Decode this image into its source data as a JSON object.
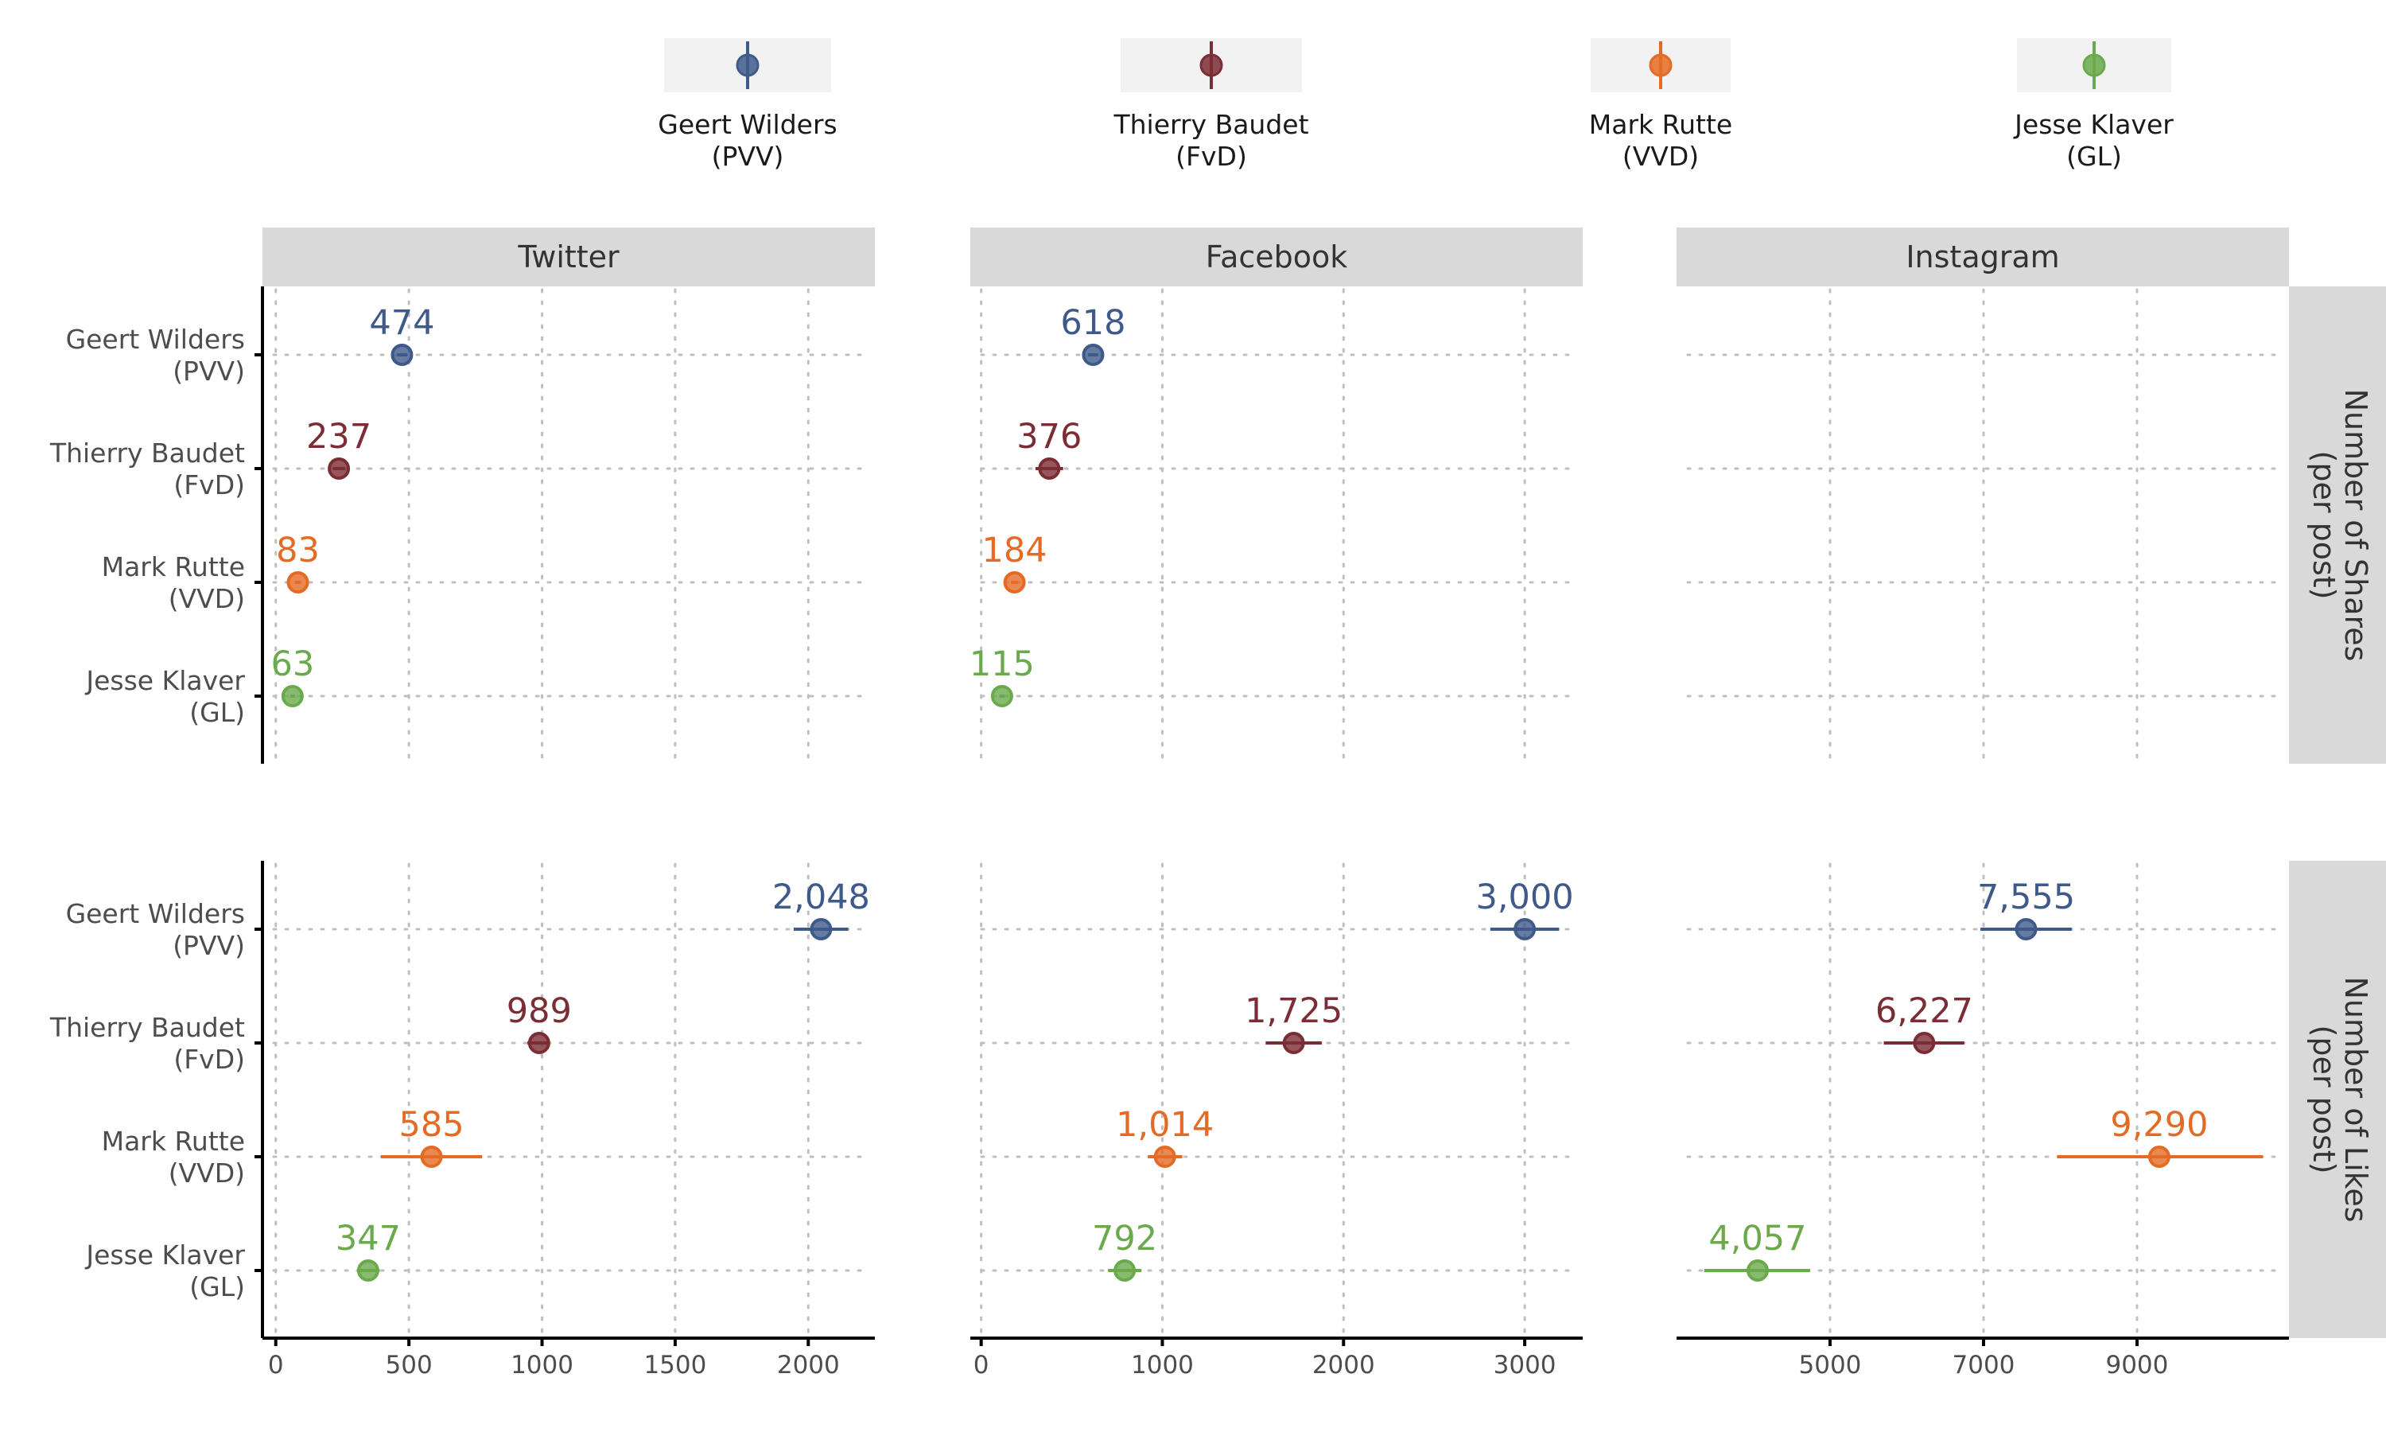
{
  "legend": [
    {
      "line1": "Geert Wilders",
      "line2": "(PVV)",
      "color": "#3f5a8a"
    },
    {
      "line1": "Thierry Baudet",
      "line2": "(FvD)",
      "color": "#7b2d35"
    },
    {
      "line1": "Mark Rutte",
      "line2": "(VVD)",
      "color": "#e46b25"
    },
    {
      "line1": "Jesse Klaver",
      "line2": "(GL)",
      "color": "#6aaa4c"
    }
  ],
  "chart_data": {
    "type": "dot-errorbar",
    "columns": [
      "Twitter",
      "Facebook",
      "Instagram"
    ],
    "rows": [
      {
        "line1": "Number of Shares",
        "line2": "(per post)"
      },
      {
        "line1": "Number of Likes",
        "line2": "(per post)"
      }
    ],
    "categories": [
      {
        "line1": "Geert Wilders",
        "line2": "(PVV)"
      },
      {
        "line1": "Thierry Baudet",
        "line2": "(FvD)"
      },
      {
        "line1": "Mark Rutte",
        "line2": "(VVD)"
      },
      {
        "line1": "Jesse Klaver",
        "line2": "(GL)"
      }
    ],
    "x_axes": [
      {
        "column": "Twitter",
        "xlim": [
          -50,
          2250
        ],
        "ticks": [
          0,
          500,
          1000,
          1500,
          2000
        ],
        "tick_labels": [
          "0",
          "500",
          "1000",
          "1500",
          "2000"
        ]
      },
      {
        "column": "Facebook",
        "xlim": [
          -60,
          3320
        ],
        "ticks": [
          0,
          1000,
          2000,
          3000
        ],
        "tick_labels": [
          "0",
          "1000",
          "2000",
          "3000"
        ]
      },
      {
        "column": "Instagram",
        "xlim": [
          3000,
          10980
        ],
        "ticks": [
          5000,
          7000,
          9000
        ],
        "tick_labels": [
          "5000",
          "7000",
          "9000"
        ]
      }
    ],
    "panels": [
      {
        "row": 0,
        "col": 0,
        "points": [
          {
            "value": 474,
            "low": 455,
            "high": 494,
            "label": "474"
          },
          {
            "value": 237,
            "low": 215,
            "high": 260,
            "label": "237"
          },
          {
            "value": 83,
            "low": 72,
            "high": 95,
            "label": "83"
          },
          {
            "value": 63,
            "low": 55,
            "high": 72,
            "label": "63"
          }
        ]
      },
      {
        "row": 0,
        "col": 1,
        "points": [
          {
            "value": 618,
            "low": 590,
            "high": 646,
            "label": "618"
          },
          {
            "value": 376,
            "low": 300,
            "high": 452,
            "label": "376"
          },
          {
            "value": 184,
            "low": 165,
            "high": 203,
            "label": "184"
          },
          {
            "value": 115,
            "low": 100,
            "high": 130,
            "label": "115"
          }
        ]
      },
      {
        "row": 0,
        "col": 2,
        "points": []
      },
      {
        "row": 1,
        "col": 0,
        "points": [
          {
            "value": 2048,
            "low": 1945,
            "high": 2150,
            "label": "2,048"
          },
          {
            "value": 989,
            "low": 945,
            "high": 1030,
            "label": "989"
          },
          {
            "value": 585,
            "low": 395,
            "high": 775,
            "label": "585"
          },
          {
            "value": 347,
            "low": 305,
            "high": 390,
            "label": "347"
          }
        ]
      },
      {
        "row": 1,
        "col": 1,
        "points": [
          {
            "value": 3000,
            "low": 2810,
            "high": 3190,
            "label": "3,000"
          },
          {
            "value": 1725,
            "low": 1570,
            "high": 1880,
            "label": "1,725"
          },
          {
            "value": 1014,
            "low": 920,
            "high": 1110,
            "label": "1,014"
          },
          {
            "value": 792,
            "low": 700,
            "high": 885,
            "label": "792"
          }
        ]
      },
      {
        "row": 1,
        "col": 2,
        "points": [
          {
            "value": 7555,
            "low": 6960,
            "high": 8150,
            "label": "7,555"
          },
          {
            "value": 6227,
            "low": 5700,
            "high": 6750,
            "label": "6,227"
          },
          {
            "value": 9290,
            "low": 7960,
            "high": 10640,
            "label": "9,290"
          },
          {
            "value": 4057,
            "low": 3360,
            "high": 4740,
            "label": "4,057"
          }
        ]
      }
    ],
    "grid": true,
    "legend_position": "top"
  }
}
